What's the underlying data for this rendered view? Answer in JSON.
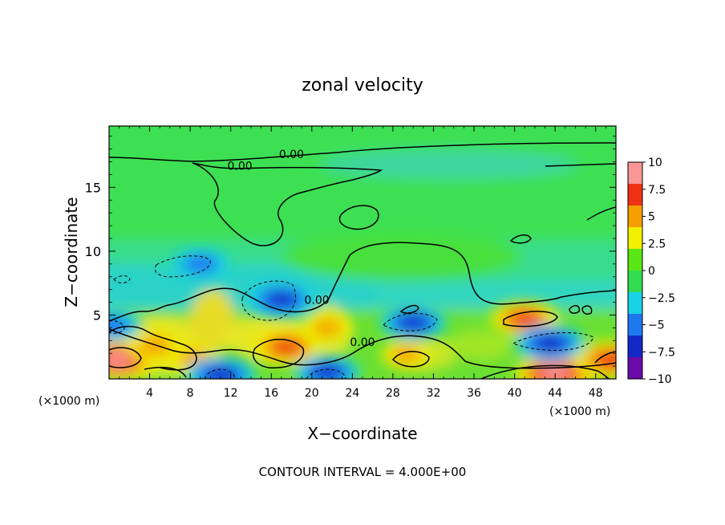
{
  "chart_data": {
    "type": "heatmap",
    "title": "zonal velocity",
    "xlabel": "X−coordinate",
    "ylabel": "Z−coordinate",
    "x_unit_left": "(×1000 m)",
    "x_unit_right": "(×1000 m)",
    "footer": "CONTOUR INTERVAL = 4.000E+00",
    "xlim": [
      0,
      50
    ],
    "ylim": [
      0,
      19.8
    ],
    "x_ticks": [
      4,
      8,
      12,
      16,
      20,
      24,
      28,
      32,
      36,
      40,
      44,
      48
    ],
    "y_ticks": [
      5,
      10,
      15
    ],
    "colorbar": {
      "range": [
        -10,
        10
      ],
      "ticks": [
        10,
        7.5,
        5,
        2.5,
        0,
        -2.5,
        -5,
        -7.5,
        -10
      ],
      "tick_labels": [
        "10",
        "7.5",
        "5",
        "2.5",
        "0",
        "−2.5",
        "−5",
        "−7.5",
        "−10"
      ],
      "colors": [
        "#6a0aa8",
        "#1428c8",
        "#1e78f0",
        "#18d2e6",
        "#32dc50",
        "#5ae614",
        "#f0f000",
        "#f5a000",
        "#f03214",
        "#fa9696"
      ]
    },
    "contour_labels": [
      {
        "text": "0.00",
        "x": 18.0,
        "y": 17.6
      },
      {
        "text": "0.00",
        "x": 12.9,
        "y": 16.7
      },
      {
        "text": "0.00",
        "x": 20.5,
        "y": 6.2
      },
      {
        "text": "0.00",
        "x": 25.0,
        "y": 2.9
      }
    ],
    "features": [
      {
        "kind": "positive",
        "x": 0.8,
        "y": 1.5,
        "v": 9.5
      },
      {
        "kind": "positive",
        "x": 4.5,
        "y": 2.6,
        "v": 5.5
      },
      {
        "kind": "positive",
        "x": 8.5,
        "y": 1.6,
        "v": 4.5
      },
      {
        "kind": "positive",
        "x": 17.5,
        "y": 2.5,
        "v": 7.5
      },
      {
        "kind": "positive",
        "x": 21.5,
        "y": 4.0,
        "v": 4.0
      },
      {
        "kind": "positive",
        "x": 29.3,
        "y": 1.9,
        "v": 4.0
      },
      {
        "kind": "positive",
        "x": 41.0,
        "y": 4.7,
        "v": 7.5
      },
      {
        "kind": "positive",
        "x": 44.0,
        "y": 0.4,
        "v": 10.0
      },
      {
        "kind": "positive",
        "x": 49.5,
        "y": 1.5,
        "v": 8.5
      },
      {
        "kind": "negative",
        "x": 9.0,
        "y": 9.0,
        "v": -5.5
      },
      {
        "kind": "negative",
        "x": 17.0,
        "y": 6.2,
        "v": -7.5
      },
      {
        "kind": "negative",
        "x": 30.0,
        "y": 4.4,
        "v": -7.0
      },
      {
        "kind": "negative",
        "x": 43.5,
        "y": 2.8,
        "v": -8.0
      },
      {
        "kind": "negative",
        "x": 11.0,
        "y": 0.3,
        "v": -8.0
      },
      {
        "kind": "negative",
        "x": 21.5,
        "y": 0.5,
        "v": -7.0
      },
      {
        "kind": "negative",
        "x": 0.3,
        "y": 4.2,
        "v": -6.0
      }
    ]
  }
}
